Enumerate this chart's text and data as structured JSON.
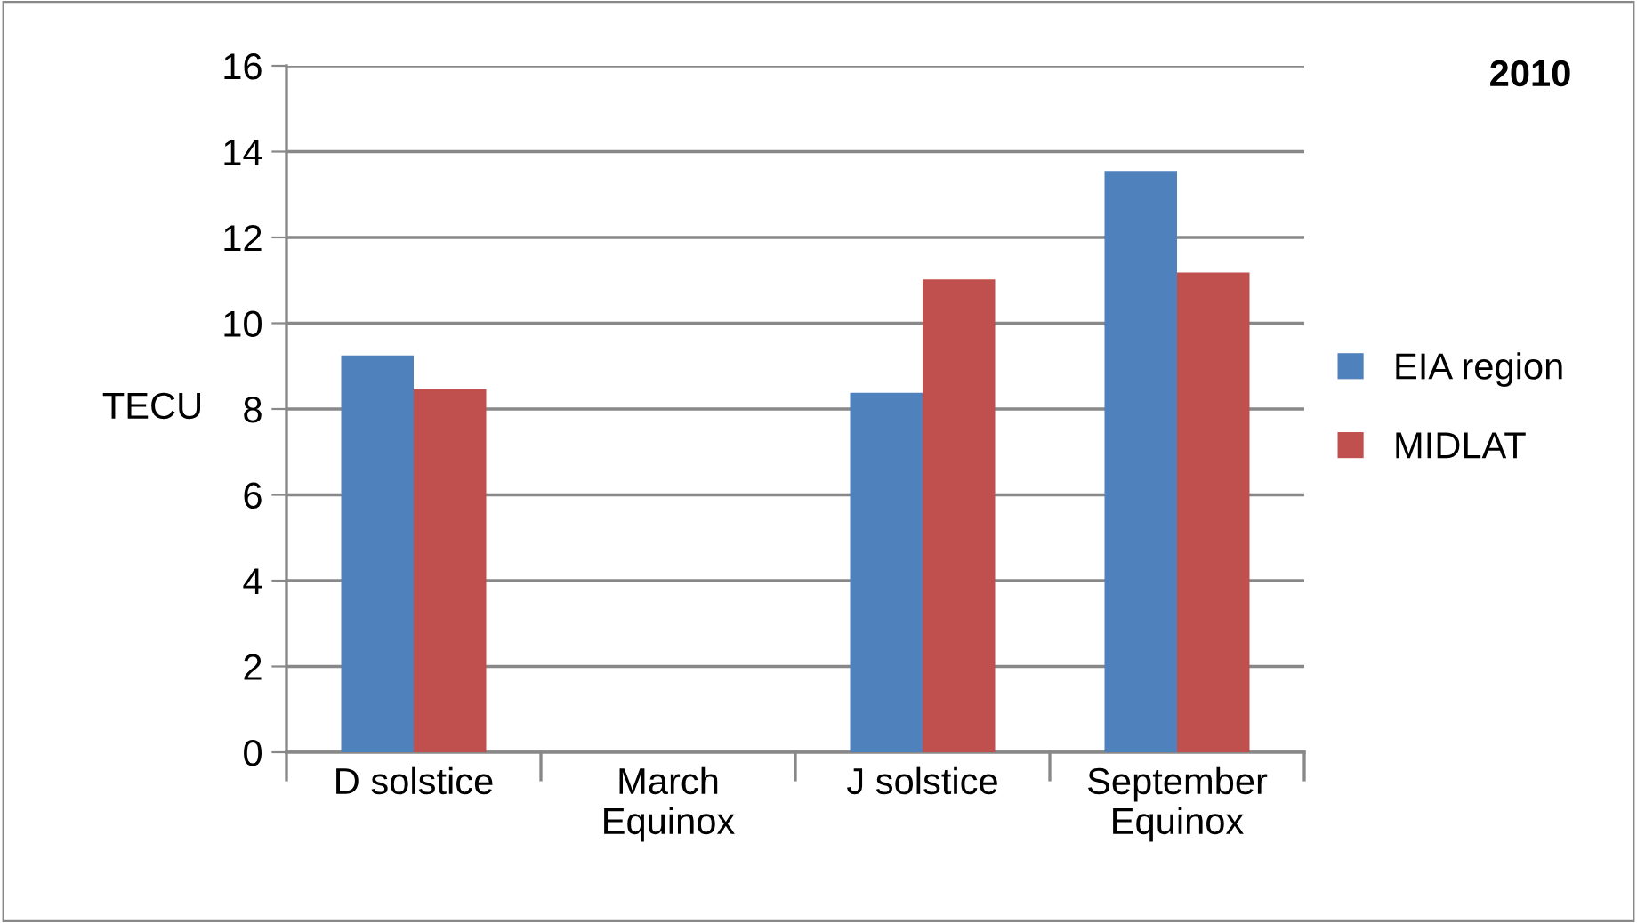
{
  "chart_data": {
    "type": "bar",
    "title": "2010",
    "ylabel": "TECU",
    "categories": [
      "D solstice",
      "March\nEquinox",
      "J solstice",
      "September\nEquinox"
    ],
    "series": [
      {
        "name": "EIA region",
        "color": "#4f81bd",
        "values": [
          9.25,
          null,
          8.38,
          13.55
        ]
      },
      {
        "name": "MIDLAT",
        "color": "#c0504d",
        "values": [
          8.46,
          null,
          11.02,
          11.18
        ]
      }
    ],
    "ylim": [
      0,
      16
    ],
    "yticks": [
      0,
      2,
      4,
      6,
      8,
      10,
      12,
      14,
      16
    ],
    "grid": "y",
    "legend": "right"
  }
}
